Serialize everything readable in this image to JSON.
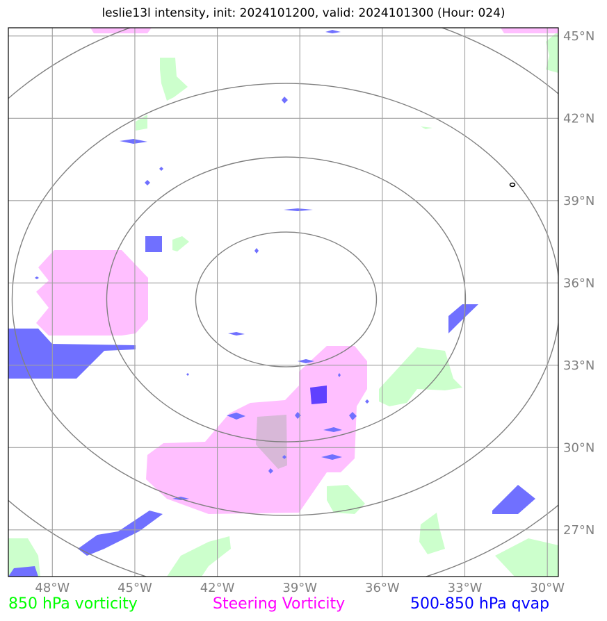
{
  "title": "leslie13l intensity, init: 2024101200, valid: 2024101300 (Hour: 024)",
  "colors": {
    "vort850": "#ccffcc",
    "steering": "#ffbfff",
    "qvap": "#7070ff",
    "qvap_dark": "#6040ff",
    "grid": "#a0a0a0",
    "range_ring": "#808080"
  },
  "axes": {
    "lon_ticks": [
      {
        "value": -48,
        "label": "48°W"
      },
      {
        "value": -45,
        "label": "45°W"
      },
      {
        "value": -42,
        "label": "42°W"
      },
      {
        "value": -39,
        "label": "39°W"
      },
      {
        "value": -36,
        "label": "36°W"
      },
      {
        "value": -33,
        "label": "33°W"
      },
      {
        "value": -30,
        "label": "30°W"
      }
    ],
    "lat_ticks": [
      {
        "value": 45,
        "label": "45°N"
      },
      {
        "value": 42,
        "label": "42°N"
      },
      {
        "value": 39,
        "label": "39°N"
      },
      {
        "value": 36,
        "label": "36°N"
      },
      {
        "value": 33,
        "label": "33°N"
      },
      {
        "value": 30,
        "label": "30°N"
      },
      {
        "value": 27,
        "label": "27°N"
      }
    ],
    "lon_range": [
      -49.6,
      -29.6
    ],
    "lat_range": [
      25.3,
      45.3
    ]
  },
  "range_rings_center": {
    "lon": -39.5,
    "lat": 35.4
  },
  "legend": {
    "vort850": "850 hPa vorticity",
    "steering": "Steering Vorticity",
    "qvap": "500-850 hPa qvap"
  }
}
